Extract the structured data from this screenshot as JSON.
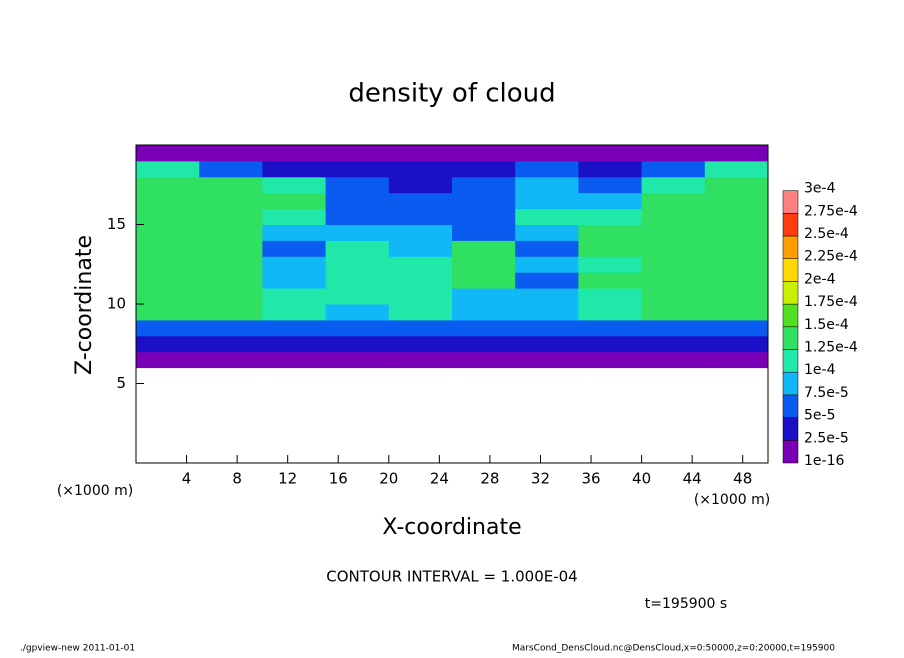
{
  "chart_data": {
    "type": "heatmap",
    "title": "density of cloud",
    "x_label": "X-coordinate",
    "y_label": "Z-coordinate",
    "y_unit": "(×1000 m)",
    "x_unit": "(×1000 m)",
    "annotations": [
      "CONTOUR INTERVAL = 1.000E-04",
      "t=195900 s"
    ],
    "footer_left": "./gpview-new  2011-01-01",
    "footer_right": "MarsCond_DensCloud.nc@DensCloud,x=0:50000,z=0:20000,t=195900",
    "xlim": [
      0,
      50
    ],
    "ylim": [
      0,
      20
    ],
    "xticks": [
      4,
      8,
      12,
      16,
      20,
      24,
      28,
      32,
      36,
      40,
      44,
      48
    ],
    "yticks": [
      5,
      10,
      15
    ],
    "x": [
      2.5,
      7.5,
      12.5,
      17.5,
      22.5,
      27.5,
      32.5,
      37.5,
      42.5,
      47.5
    ],
    "y": [
      0.5,
      1.5,
      2.5,
      3.5,
      4.5,
      5.5,
      6.5,
      7.5,
      8.5,
      9.5,
      10.5,
      11.5,
      12.5,
      13.5,
      14.5,
      15.5,
      16.5,
      17.5,
      18.5,
      19.5
    ],
    "z": [
      [
        null,
        null,
        null,
        null,
        null,
        null,
        null,
        null,
        null,
        null
      ],
      [
        null,
        null,
        null,
        null,
        null,
        null,
        null,
        null,
        null,
        null
      ],
      [
        null,
        null,
        null,
        null,
        null,
        null,
        null,
        null,
        null,
        null
      ],
      [
        null,
        null,
        null,
        null,
        null,
        null,
        null,
        null,
        null,
        null
      ],
      [
        null,
        null,
        null,
        null,
        null,
        null,
        null,
        null,
        null,
        null
      ],
      [
        null,
        null,
        null,
        null,
        null,
        null,
        null,
        null,
        null,
        null
      ],
      [
        1e-05,
        1e-05,
        1e-05,
        1e-05,
        1e-05,
        1e-05,
        1e-05,
        1e-05,
        1e-05,
        1e-05
      ],
      [
        3e-05,
        3e-05,
        3e-05,
        3e-05,
        3e-05,
        3e-05,
        3e-05,
        3e-05,
        3e-05,
        3e-05
      ],
      [
        6e-05,
        6e-05,
        6e-05,
        6e-05,
        6e-05,
        6e-05,
        6e-05,
        6e-05,
        6e-05,
        6e-05
      ],
      [
        0.00013,
        0.00013,
        0.00011,
        9e-05,
        0.00011,
        8e-05,
        9e-05,
        0.00011,
        0.00013,
        0.00013
      ],
      [
        0.00014,
        0.00014,
        0.00011,
        0.0001,
        0.00011,
        9e-05,
        8e-05,
        0.00012,
        0.00014,
        0.00014
      ],
      [
        0.00014,
        0.00014,
        9e-05,
        0.00012,
        0.00011,
        0.00013,
        7e-05,
        0.00013,
        0.00014,
        0.00014
      ],
      [
        0.00014,
        0.00014,
        9e-05,
        0.00011,
        0.00012,
        0.00013,
        8e-05,
        0.00012,
        0.00014,
        0.00014
      ],
      [
        0.00014,
        0.00014,
        6e-05,
        0.00012,
        8e-05,
        0.00013,
        7e-05,
        0.00013,
        0.00014,
        0.00014
      ],
      [
        0.00014,
        0.00014,
        8e-05,
        9e-05,
        8e-05,
        7e-05,
        9e-05,
        0.00013,
        0.00014,
        0.00014
      ],
      [
        0.00014,
        0.00014,
        0.00012,
        7e-05,
        7e-05,
        6e-05,
        0.0001,
        0.00012,
        0.00014,
        0.00014
      ],
      [
        0.00014,
        0.00014,
        0.00013,
        5e-05,
        6e-05,
        7e-05,
        9e-05,
        9e-05,
        0.00013,
        0.00014
      ],
      [
        0.00014,
        0.00013,
        0.00012,
        5e-05,
        4e-05,
        6e-05,
        8e-05,
        7e-05,
        0.00011,
        0.00013
      ],
      [
        0.00012,
        6e-05,
        4e-05,
        3e-05,
        4e-05,
        4e-05,
        5e-05,
        4e-05,
        6e-05,
        0.00011
      ],
      [
        1e-05,
        1e-05,
        1e-05,
        1e-05,
        1e-05,
        1e-05,
        1e-05,
        1e-05,
        1e-05,
        1e-05
      ]
    ],
    "colorbar": {
      "levels": [
        1e-16,
        {
          "value": 2.5e-05,
          "label": "2.5e-5"
        },
        {
          "value": 5e-05,
          "label": "5e-5"
        },
        {
          "value": 7.5e-05,
          "label": "7.5e-5"
        },
        {
          "value": 0.0001,
          "label": "1e-4"
        },
        {
          "value": 0.000125,
          "label": "1.25e-4"
        },
        {
          "value": 0.00015,
          "label": "1.5e-4"
        },
        {
          "value": 0.000175,
          "label": "1.75e-4"
        },
        {
          "value": 0.0002,
          "label": "2e-4"
        },
        {
          "value": 0.000225,
          "label": "2.25e-4"
        },
        {
          "value": 0.00025,
          "label": "2.5e-4"
        },
        {
          "value": 0.000275,
          "label": "2.75e-4"
        },
        {
          "value": 0.0003,
          "label": "3e-4"
        }
      ],
      "colors": [
        "#7a00b8",
        "#1a10c8",
        "#0a5cf0",
        "#10b8f8",
        "#20e8a8",
        "#30e060",
        "#50e020",
        "#c8f000",
        "#ffd800",
        "#ff9c00",
        "#ff3c10",
        "#ff8080"
      ]
    }
  }
}
